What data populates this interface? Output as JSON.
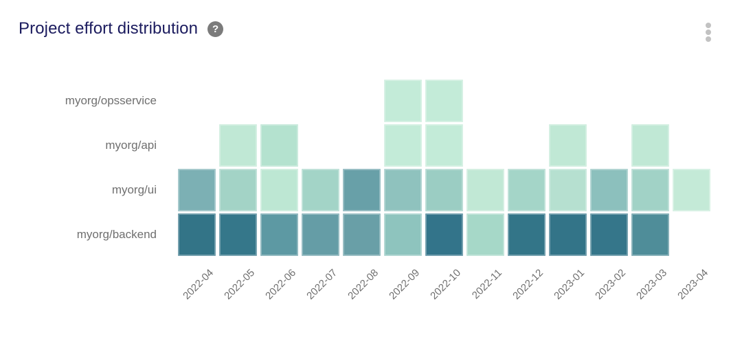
{
  "header": {
    "title": "Project effort distribution",
    "help_icon_glyph": "?"
  },
  "colors": {
    "background": "#ffffff",
    "title_text": "#1b1b5e",
    "axis_label_text": "#6f6f6f",
    "help_icon_bg": "#7b7b7b",
    "menu_dots": "#c2c2c2"
  },
  "chart_data": {
    "type": "heatmap",
    "title": "Project effort distribution",
    "x_categories": [
      "2022-04",
      "2022-05",
      "2022-06",
      "2022-07",
      "2022-08",
      "2022-09",
      "2022-10",
      "2022-11",
      "2022-12",
      "2023-01",
      "2023-02",
      "2023-03",
      "2023-04"
    ],
    "y_categories": [
      "myorg/opsservice",
      "myorg/api",
      "myorg/ui",
      "myorg/backend"
    ],
    "legend": "none",
    "grid": "off",
    "x_label_rotation_deg": -45,
    "color_scale": {
      "low_effort": "#d4f2e2",
      "high_effort": "#2f7184"
    },
    "cell_colors": [
      [
        null,
        null,
        null,
        null,
        null,
        "#c3ebd8",
        "#c3ebd8",
        null,
        null,
        null,
        null,
        null,
        null
      ],
      [
        null,
        "#c0e8d5",
        "#b4e2cf",
        null,
        null,
        "#c3ebd8",
        "#c3ebd8",
        null,
        null,
        "#c0e8d5",
        null,
        "#c0e8d5",
        null
      ],
      [
        "#7cb0b4",
        "#a3d3c6",
        "#bde7d3",
        "#a3d4c7",
        "#68a0a8",
        "#8fc2be",
        "#9bcdc3",
        "#c1e8d5",
        "#a4d5c8",
        "#b6e0d0",
        "#8cc0bd",
        "#a1d2c6",
        "#c4ead7"
      ],
      [
        "#337487",
        "#35778a",
        "#5d99a3",
        "#659da6",
        "#699fa7",
        "#8ec4be",
        "#33748a",
        "#a6d8c8",
        "#337588",
        "#337488",
        "#35768a",
        "#4f8d99",
        null
      ]
    ]
  }
}
